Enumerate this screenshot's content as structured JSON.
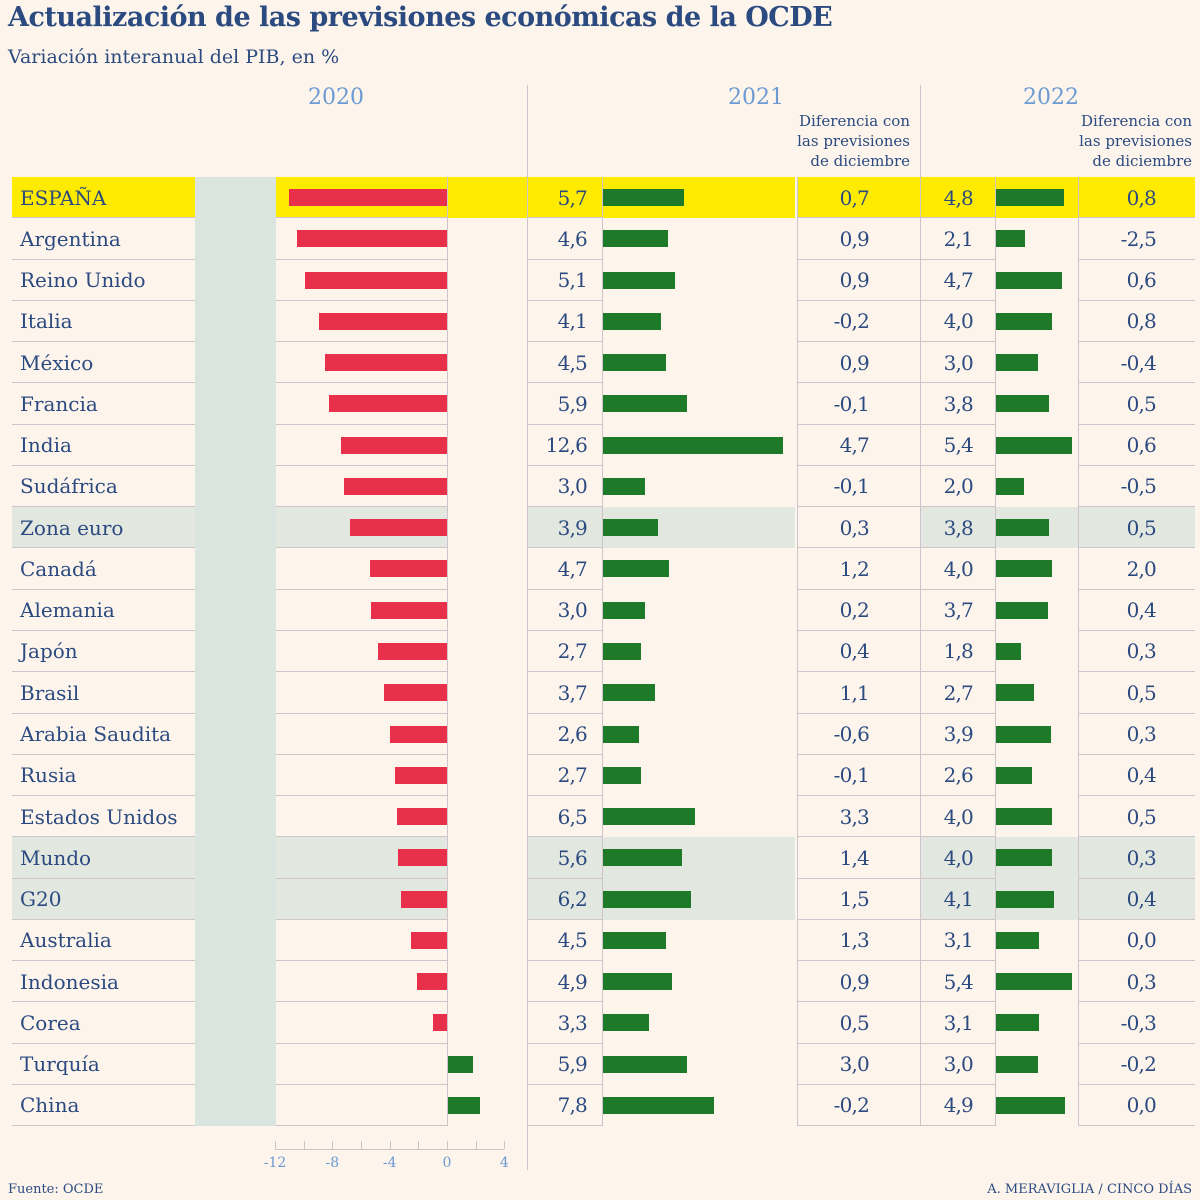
{
  "title": "Actualización de las previsiones económicas de la OCDE",
  "subtitle": "Variación interanual del PIB, en %",
  "source": "Fuente: OCDE",
  "credit": "A. MERAVIGLIA / CINCO DÍAS",
  "colors": {
    "negative": "#e8304b",
    "positive": "#1e7a28",
    "highlight": "#ffeb00",
    "aggregate": "#e2e7e0",
    "shaded_column": "#dbe5e0",
    "background": "#fdf4ec"
  },
  "chart_data": {
    "type": "table",
    "columns": [
      "2020",
      "2021",
      "Diferencia con las previsiones de diciembre",
      "2022",
      "Diferencia con las previsiones de diciembre"
    ],
    "headers": {
      "y2020": "2020",
      "y2021": "2021",
      "y2022": "2022",
      "diff": "Diferencia con las previsiones de diciembre",
      "diff_lines": [
        "Diferencia con",
        "las previsiones",
        "de diciembre"
      ]
    },
    "axis_2020": {
      "ticks": [
        "-12",
        "-8",
        "-4",
        "0",
        "4"
      ],
      "range": [
        -12,
        4
      ]
    },
    "rows": [
      {
        "country": "ESPAÑA",
        "v2020": "-11,0",
        "v2021": "5,7",
        "d2021": "0,7",
        "v2022": "4,8",
        "d2022": "0,8",
        "highlight": "yellow"
      },
      {
        "country": "Argentina",
        "v2020": "-10,5",
        "v2021": "4,6",
        "d2021": "0,9",
        "v2022": "2,1",
        "d2022": "-2,5"
      },
      {
        "country": "Reino Unido",
        "v2020": "-9,9",
        "v2021": "5,1",
        "d2021": "0,9",
        "v2022": "4,7",
        "d2022": "0,6"
      },
      {
        "country": "Italia",
        "v2020": "-8,9",
        "v2021": "4,1",
        "d2021": "-0,2",
        "v2022": "4,0",
        "d2022": "0,8"
      },
      {
        "country": "México",
        "v2020": "-8,5",
        "v2021": "4,5",
        "d2021": "0,9",
        "v2022": "3,0",
        "d2022": "-0,4"
      },
      {
        "country": "Francia",
        "v2020": "-8,2",
        "v2021": "5,9",
        "d2021": "-0,1",
        "v2022": "3,8",
        "d2022": "0,5"
      },
      {
        "country": "India",
        "v2020": "-7,4",
        "v2021": "12,6",
        "d2021": "4,7",
        "v2022": "5,4",
        "d2022": "0,6"
      },
      {
        "country": "Sudáfrica",
        "v2020": "-7,2",
        "v2021": "3,0",
        "d2021": "-0,1",
        "v2022": "2,0",
        "d2022": "-0,5"
      },
      {
        "country": "Zona euro",
        "v2020": "-6,8",
        "v2021": "3,9",
        "d2021": "0,3",
        "v2022": "3,8",
        "d2022": "0,5",
        "highlight": "aggregate"
      },
      {
        "country": "Canadá",
        "v2020": "-5,4",
        "v2021": "4,7",
        "d2021": "1,2",
        "v2022": "4,0",
        "d2022": "2,0"
      },
      {
        "country": "Alemania",
        "v2020": "-5,3",
        "v2021": "3,0",
        "d2021": "0,2",
        "v2022": "3,7",
        "d2022": "0,4"
      },
      {
        "country": "Japón",
        "v2020": "-4,8",
        "v2021": "2,7",
        "d2021": "0,4",
        "v2022": "1,8",
        "d2022": "0,3"
      },
      {
        "country": "Brasil",
        "v2020": "-4,4",
        "v2021": "3,7",
        "d2021": "1,1",
        "v2022": "2,7",
        "d2022": "0,5"
      },
      {
        "country": "Arabia Saudita",
        "v2020": "-4,0",
        "v2021": "2,6",
        "d2021": "-0,6",
        "v2022": "3,9",
        "d2022": "0,3"
      },
      {
        "country": "Rusia",
        "v2020": "-3,6",
        "v2021": "2,7",
        "d2021": "-0,1",
        "v2022": "2,6",
        "d2022": "0,4"
      },
      {
        "country": "Estados Unidos",
        "v2020": "-3,5",
        "v2021": "6,5",
        "d2021": "3,3",
        "v2022": "4,0",
        "d2022": "0,5"
      },
      {
        "country": "Mundo",
        "v2020": "-3,4",
        "v2021": "5,6",
        "d2021": "1,4",
        "v2022": "4,0",
        "d2022": "0,3",
        "highlight": "aggregate"
      },
      {
        "country": "G20",
        "v2020": "-3,2",
        "v2021": "6,2",
        "d2021": "1,5",
        "v2022": "4,1",
        "d2022": "0,4",
        "highlight": "aggregate"
      },
      {
        "country": "Australia",
        "v2020": "-2,5",
        "v2021": "4,5",
        "d2021": "1,3",
        "v2022": "3,1",
        "d2022": "0,0"
      },
      {
        "country": "Indonesia",
        "v2020": "-2,1",
        "v2021": "4,9",
        "d2021": "0,9",
        "v2022": "5,4",
        "d2022": "0,3"
      },
      {
        "country": "Corea",
        "v2020": "-1,0",
        "v2021": "3,3",
        "d2021": "0,5",
        "v2022": "3,1",
        "d2022": "-0,3"
      },
      {
        "country": "Turquía",
        "v2020": "1,8",
        "v2021": "5,9",
        "d2021": "3,0",
        "v2022": "3,0",
        "d2022": "-0,2"
      },
      {
        "country": "China",
        "v2020": "2,3",
        "v2021": "7,8",
        "d2021": "-0,2",
        "v2022": "4,9",
        "d2022": "0,0"
      }
    ]
  }
}
